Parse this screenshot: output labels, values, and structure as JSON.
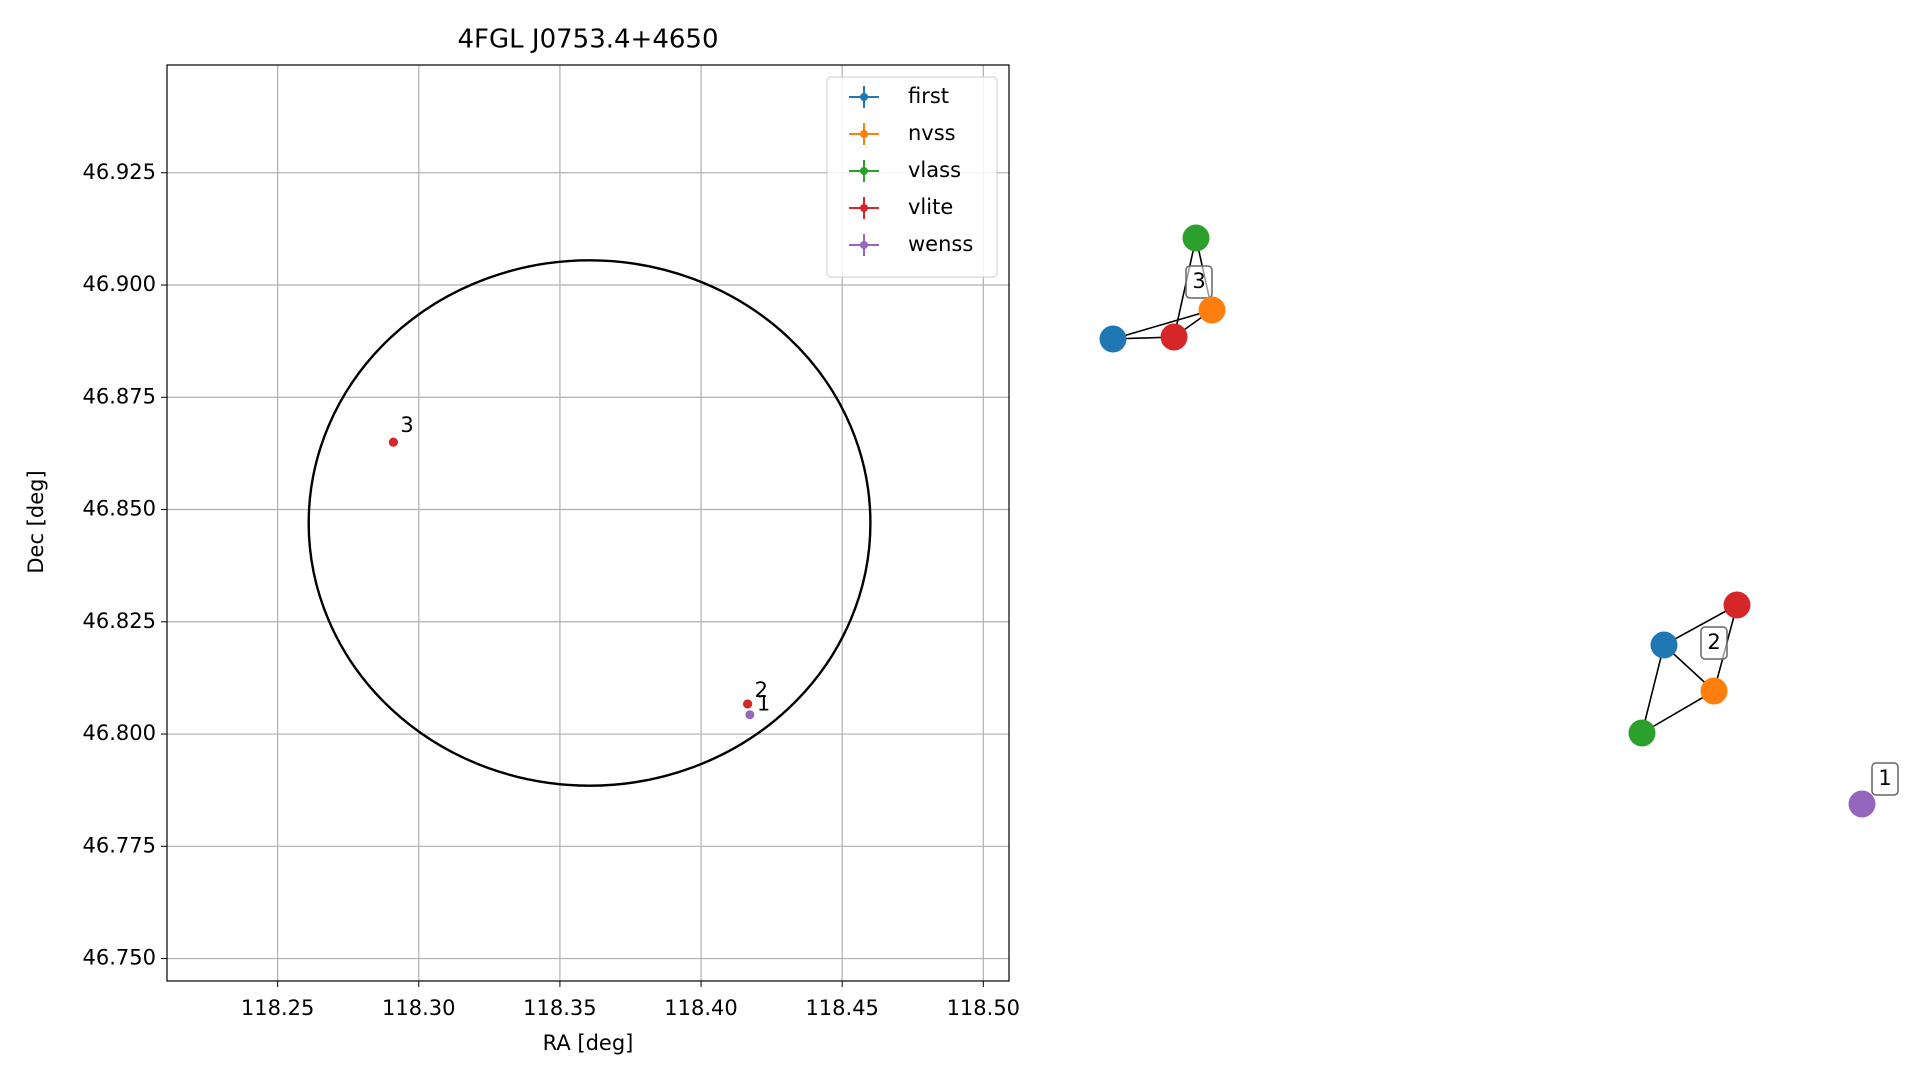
{
  "chart_data": {
    "type": "scatter",
    "title": "4FGL J0753.4+4650",
    "x_label": "RA [deg]",
    "y_label": "Dec [deg]",
    "xlim": [
      118.2108,
      118.5091
    ],
    "ylim": [
      46.745,
      46.949
    ],
    "xticks": [
      {
        "value": 118.25,
        "label": "118.25"
      },
      {
        "value": 118.3,
        "label": "118.30"
      },
      {
        "value": 118.35,
        "label": "118.35"
      },
      {
        "value": 118.4,
        "label": "118.40"
      },
      {
        "value": 118.45,
        "label": "118.45"
      },
      {
        "value": 118.5,
        "label": "118.50"
      }
    ],
    "yticks": [
      {
        "value": 46.75,
        "label": "46.750"
      },
      {
        "value": 46.775,
        "label": "46.775"
      },
      {
        "value": 46.8,
        "label": "46.800"
      },
      {
        "value": 46.825,
        "label": "46.825"
      },
      {
        "value": 46.85,
        "label": "46.850"
      },
      {
        "value": 46.875,
        "label": "46.875"
      },
      {
        "value": 46.9,
        "label": "46.900"
      },
      {
        "value": 46.925,
        "label": "46.925"
      }
    ],
    "grid": true,
    "legend": "upper right",
    "series": [
      {
        "name": "first",
        "color": "#1f77b4",
        "x": [
          118.291,
          118.4165
        ],
        "values": [
          46.865,
          46.8067
        ]
      },
      {
        "name": "nvss",
        "color": "#ff7f0e",
        "x": [
          118.291,
          118.4165
        ],
        "values": [
          46.865,
          46.8067
        ]
      },
      {
        "name": "vlass",
        "color": "#2ca02c",
        "x": [
          118.291,
          118.4165
        ],
        "values": [
          46.865,
          46.8067
        ]
      },
      {
        "name": "vlite",
        "color": "#d62728",
        "x": [
          118.291,
          118.4165
        ],
        "values": [
          46.865,
          46.8067
        ]
      },
      {
        "name": "wenss",
        "color": "#9467bd",
        "x": [
          118.4173
        ],
        "values": [
          46.8043
        ]
      }
    ],
    "region": {
      "center_x": 118.3605,
      "center_y": 46.847,
      "radius_x": 0.0995,
      "radius_y": 0.0585,
      "color": "#000000"
    },
    "annotations": [
      {
        "text": "3",
        "x": 118.291,
        "y": 46.865
      },
      {
        "text": "2",
        "x": 118.4165,
        "y": 46.8067
      },
      {
        "text": "1",
        "x": 118.4173,
        "y": 46.8043
      }
    ]
  },
  "graph": {
    "groups": [
      {
        "label": "3",
        "nodes": [
          "vlass",
          "nvss",
          "first",
          "vlite"
        ],
        "edges": [
          [
            2,
            3
          ],
          [
            2,
            1
          ],
          [
            0,
            3
          ],
          [
            0,
            1
          ],
          [
            3,
            1
          ]
        ]
      },
      {
        "label": "2",
        "nodes": [
          "vlite",
          "first",
          "nvss",
          "vlass"
        ],
        "edges": [
          [
            1,
            0
          ],
          [
            1,
            2
          ],
          [
            1,
            3
          ],
          [
            3,
            2
          ],
          [
            0,
            2
          ]
        ]
      },
      {
        "label": "1",
        "nodes": [
          "wenss"
        ],
        "edges": []
      }
    ]
  }
}
